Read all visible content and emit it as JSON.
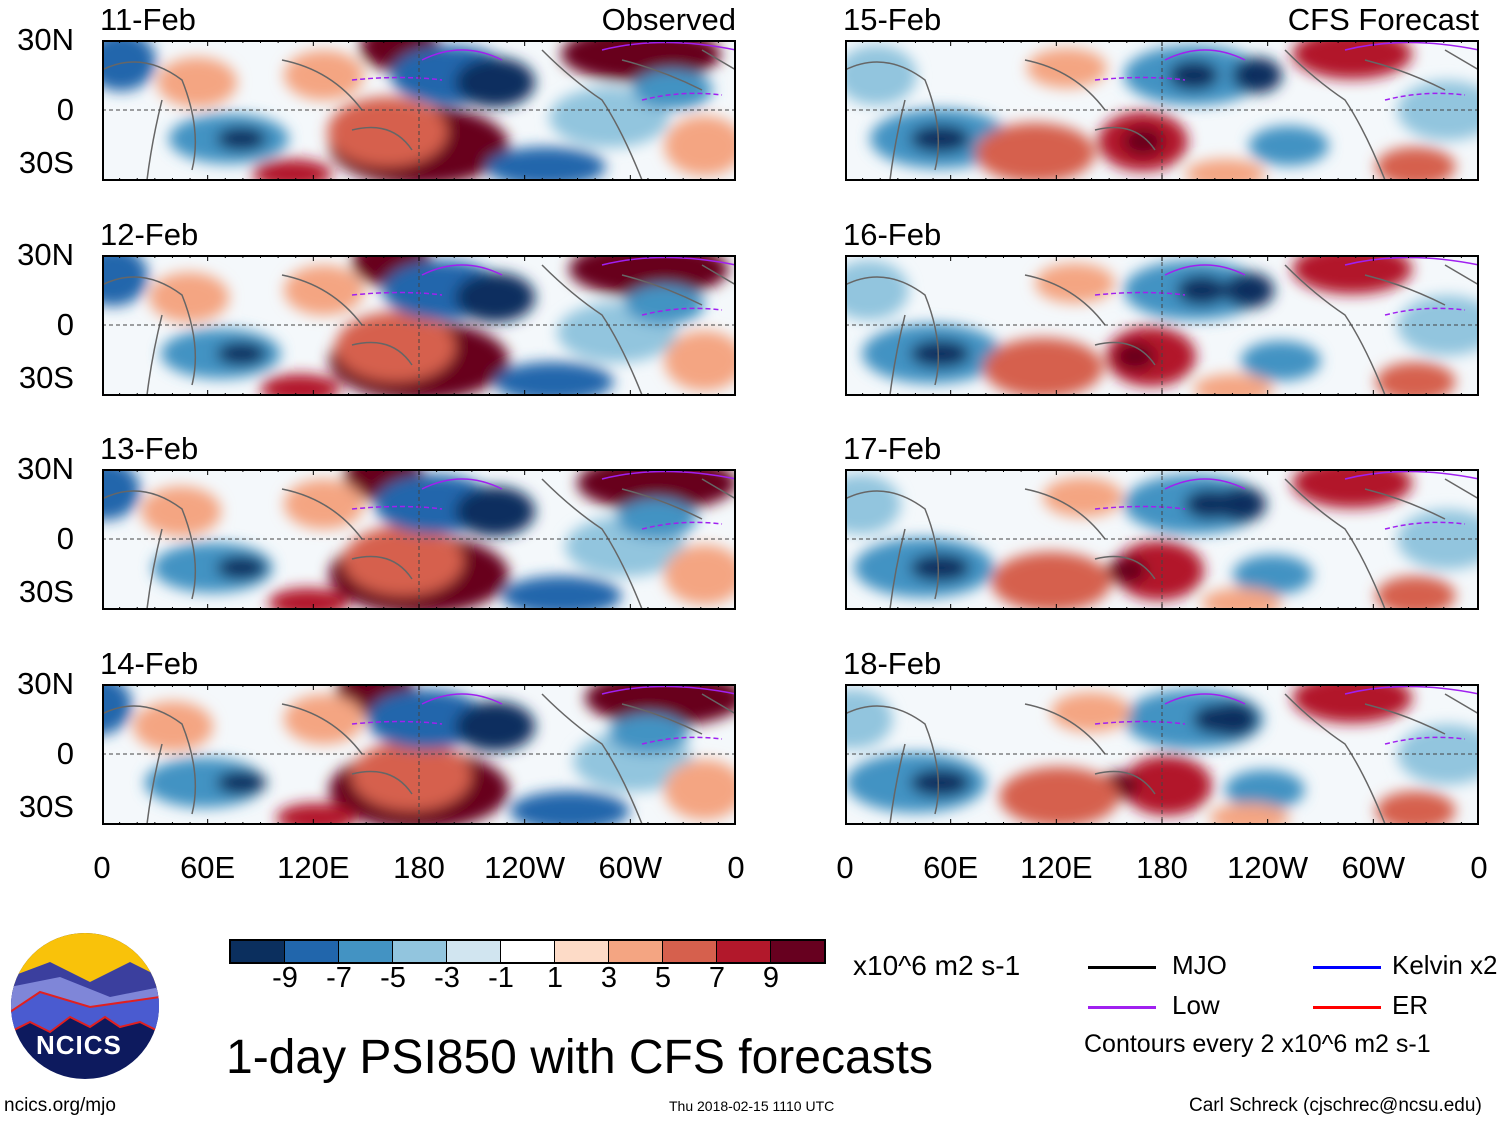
{
  "panels_left": [
    {
      "date": "11-Feb",
      "label": "Observed"
    },
    {
      "date": "12-Feb"
    },
    {
      "date": "13-Feb"
    },
    {
      "date": "14-Feb"
    }
  ],
  "panels_right": [
    {
      "date": "15-Feb",
      "label": "CFS Forecast"
    },
    {
      "date": "16-Feb"
    },
    {
      "date": "17-Feb"
    },
    {
      "date": "18-Feb"
    }
  ],
  "lat_labels": [
    "30N",
    "0",
    "30S"
  ],
  "lon_labels": [
    "0",
    "60E",
    "120E",
    "180",
    "120W",
    "60W",
    "0"
  ],
  "colorbar": {
    "colors": [
      "#0b2f5e",
      "#2166ac",
      "#4393c3",
      "#92c5de",
      "#d1e5f0",
      "#ffffff",
      "#fddbc7",
      "#f4a582",
      "#d6604d",
      "#b2182b",
      "#67001f"
    ],
    "labels": [
      "-9",
      "-7",
      "-5",
      "-3",
      "-1",
      "1",
      "3",
      "5",
      "7",
      "9"
    ],
    "units": "x10^6 m2 s-1"
  },
  "legend": {
    "items": [
      {
        "label": "MJO",
        "color": "#000000"
      },
      {
        "label": "Kelvin x2",
        "color": "#0000ff"
      },
      {
        "label": "Low",
        "color": "#a020f0"
      },
      {
        "label": "ER",
        "color": "#ff0000"
      }
    ],
    "note": "Contours every 2 x10^6 m2 s-1"
  },
  "title": "1-day PSI850 with CFS forecasts",
  "logo_text": "NCICS",
  "footer": {
    "url": "ncics.org/mjo",
    "timestamp": "Thu 2018-02-15 1110 UTC",
    "author": "Carl Schreck (cjschrec@ncsu.edu)"
  }
}
